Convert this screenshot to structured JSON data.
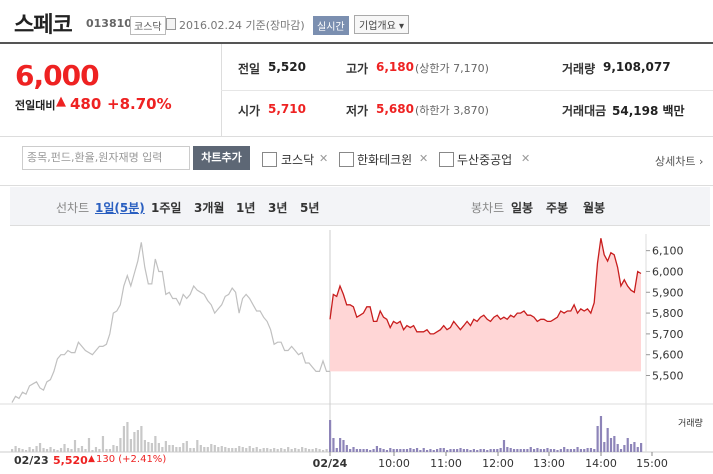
{
  "header": {
    "name": "스페코",
    "code": "013810",
    "market": "코스닥",
    "date": "2016.02.24 기준(장마감)",
    "realtime": "실시간",
    "overview": "기업개요 ▾"
  },
  "summary": {
    "price": "6,000",
    "change_label": "전일대비",
    "change_arrow": "▲",
    "change_value": "480",
    "change_pct": "+8.70%",
    "prev_label": "전일",
    "prev": "5,520",
    "high_label": "고가",
    "high": "6,180",
    "upper_limit": "(상한가 7,170)",
    "volume_label": "거래량",
    "volume": "9,108,077",
    "open_label": "시가",
    "open": "5,710",
    "low_label": "저가",
    "low": "5,680",
    "lower_limit": "(하한가 3,870)",
    "amount_label": "거래대금",
    "amount": "54,198 백만"
  },
  "search": {
    "placeholder": "종목,펀드,환율,원자재명 입력",
    "add_button": "차트추가",
    "compare": [
      "코스닥",
      "한화테크윈",
      "두산중공업"
    ],
    "detail": "상세차트 ›"
  },
  "tabs": {
    "line_label": "선차트",
    "line_tabs": [
      "1일(5분)",
      "1주일",
      "3개월",
      "1년",
      "3년",
      "5년"
    ],
    "selected": "1일(5분)",
    "candle_label": "봉차트",
    "candle_tabs": [
      "일봉",
      "주봉",
      "월봉"
    ]
  },
  "footer": {
    "date": "02/23",
    "price": "5,520",
    "arrow": "▲",
    "change": "130 (+2.41%)"
  },
  "colors": {
    "up": "#e22",
    "fill": "#ffd6d6",
    "line_prev": "#c0c0c0",
    "volume_prev": "#c8c8c8",
    "volume_cur": "#8d84b8"
  },
  "chart_data": {
    "type": "line",
    "y_ticks": [
      "6,100",
      "6,000",
      "5,900",
      "5,800",
      "5,700",
      "5,600",
      "5,500"
    ],
    "x_ticks": [
      "02/24",
      "10:00",
      "11:00",
      "12:00",
      "13:00",
      "14:00",
      "15:00"
    ],
    "volume_label": "거래량",
    "ylim": [
      5440,
      6180
    ],
    "series": [
      {
        "values": [
          5370,
          5400,
          5390,
          5420,
          5410,
          5450,
          5460,
          5470,
          5440,
          5430,
          5470,
          5480,
          5520,
          5580,
          5600,
          5600,
          5620,
          5610,
          5610,
          5660,
          5640,
          5620,
          5610,
          5600,
          5620,
          5640,
          5640,
          5650,
          5700,
          5800,
          5810,
          5840,
          5930,
          5980,
          5930,
          5990,
          6050,
          6140,
          6020,
          5940,
          5940,
          6060,
          6000,
          6000,
          5890,
          5900,
          5870,
          5870,
          5840,
          5890,
          5870,
          5890,
          5930,
          5910,
          5900,
          5890,
          5860,
          5840,
          5800,
          5820,
          5840,
          5880,
          5890,
          5920,
          5900,
          5800,
          5870,
          5890,
          5870,
          5840,
          5810,
          5810,
          5780,
          5760,
          5720,
          5650,
          5660,
          5660,
          5620,
          5620,
          5640,
          5620,
          5600,
          5610,
          5560,
          5560,
          5540,
          5520,
          5520,
          5570,
          5520,
          5520
        ]
      },
      {
        "values": [
          5770,
          5890,
          5880,
          5930,
          5890,
          5840,
          5840,
          5830,
          5780,
          5790,
          5800,
          5830,
          5830,
          5760,
          5760,
          5810,
          5780,
          5770,
          5730,
          5760,
          5750,
          5760,
          5720,
          5740,
          5730,
          5740,
          5710,
          5710,
          5710,
          5720,
          5700,
          5700,
          5710,
          5720,
          5740,
          5720,
          5730,
          5760,
          5740,
          5720,
          5740,
          5760,
          5740,
          5770,
          5760,
          5780,
          5790,
          5770,
          5760,
          5780,
          5790,
          5770,
          5780,
          5770,
          5790,
          5780,
          5800,
          5800,
          5810,
          5790,
          5790,
          5780,
          5760,
          5770,
          5770,
          5760,
          5760,
          5770,
          5780,
          5810,
          5800,
          5810,
          5810,
          5840,
          5800,
          5820,
          5810,
          5820,
          5800,
          5850,
          6040,
          6160,
          6080,
          6050,
          6090,
          6080,
          6020,
          5930,
          5960,
          5930,
          5910,
          5900,
          6000,
          5990
        ]
      }
    ],
    "volume": [
      [
        3,
        6,
        4,
        3,
        2,
        5,
        3,
        6,
        9,
        4,
        3,
        5,
        3,
        2,
        4,
        8,
        4,
        3,
        12,
        4,
        6,
        3,
        14,
        2,
        5,
        3,
        16,
        3,
        3,
        7,
        6,
        14,
        26,
        30,
        13,
        20,
        22,
        26,
        12,
        10,
        9,
        16,
        9,
        5,
        11,
        7,
        7,
        5,
        5,
        9,
        11,
        4,
        4,
        12,
        7,
        5,
        5,
        8,
        7,
        5,
        6,
        5,
        4,
        4,
        4,
        6,
        5,
        4,
        6,
        4,
        5,
        3,
        4,
        4,
        3,
        4,
        3,
        4,
        3,
        5,
        3,
        4,
        3,
        5,
        4,
        3,
        3,
        4,
        3,
        2,
        3,
        3
      ],
      [
        32,
        14,
        4,
        14,
        12,
        7,
        3,
        5,
        3,
        3,
        3,
        3,
        2,
        3,
        6,
        4,
        3,
        2,
        4,
        3,
        3,
        3,
        3,
        3,
        4,
        3,
        4,
        2,
        4,
        2,
        3,
        2,
        3,
        4,
        4,
        2,
        3,
        3,
        3,
        4,
        3,
        3,
        2,
        3,
        2,
        3,
        3,
        2,
        3,
        3,
        3,
        4,
        12,
        5,
        4,
        3,
        3,
        3,
        3,
        3,
        5,
        3,
        4,
        3,
        3,
        4,
        3,
        3,
        2,
        3,
        5,
        3,
        3,
        3,
        5,
        3,
        3,
        4,
        4,
        3,
        26,
        36,
        10,
        24,
        14,
        16,
        8,
        3,
        7,
        14,
        8,
        10,
        5,
        9
      ]
    ]
  }
}
